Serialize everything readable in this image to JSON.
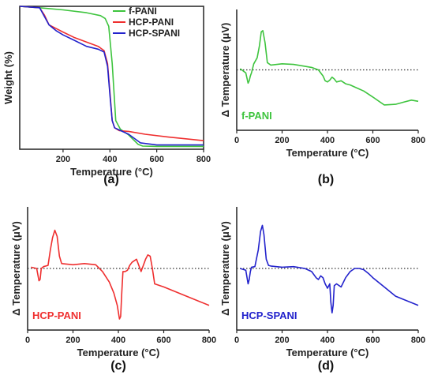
{
  "chart_data": [
    {
      "type": "line",
      "panel": "(a)",
      "xlabel": "Temperature (°C)",
      "ylabel": "Weight (%)",
      "xlim": [
        15,
        800
      ],
      "ylim": [
        0,
        100
      ],
      "xticks": [
        200,
        400,
        600,
        800
      ],
      "legend_position": "top-right",
      "series": [
        {
          "name": "f-PANI",
          "color": "#3ec43e",
          "x": [
            15,
            100,
            200,
            300,
            360,
            380,
            395,
            410,
            425,
            445,
            480,
            520,
            540,
            600,
            700,
            800
          ],
          "y": [
            100,
            99,
            97.5,
            95.5,
            93.5,
            91.5,
            86,
            60,
            20,
            14,
            10,
            3.5,
            2.2,
            2,
            2,
            2
          ]
        },
        {
          "name": "HCP-PANI",
          "color": "#ef2f2f",
          "x": [
            15,
            100,
            120,
            140,
            170,
            200,
            250,
            300,
            350,
            375,
            390,
            400,
            410,
            420,
            440,
            480,
            550,
            650,
            800
          ],
          "y": [
            100,
            99,
            94,
            87,
            84.5,
            82,
            78,
            75,
            72,
            69,
            60,
            40,
            20,
            15,
            13,
            12.5,
            10.5,
            8.5,
            6
          ]
        },
        {
          "name": "HCP-SPANI",
          "color": "#2222cc",
          "x": [
            15,
            100,
            120,
            140,
            170,
            200,
            250,
            300,
            350,
            375,
            390,
            400,
            410,
            420,
            440,
            480,
            530,
            600,
            800
          ],
          "y": [
            100,
            99,
            93,
            87,
            83,
            80,
            76,
            72,
            70,
            68,
            58,
            38,
            20,
            15,
            13.5,
            10.5,
            4.5,
            3,
            3
          ]
        }
      ]
    },
    {
      "type": "line",
      "panel": "(b)",
      "xlabel": "Temperature (°C)",
      "ylabel": "Δ Temperature (μV)",
      "inside_label": "f-PANI",
      "xlim": [
        0,
        800
      ],
      "ylim": [
        -100,
        100
      ],
      "baseline": 0,
      "xticks": [
        0,
        200,
        400,
        600,
        800
      ],
      "series": [
        {
          "name": "f-PANI",
          "color": "#3ec43e",
          "x": [
            15,
            40,
            50,
            55,
            60,
            65,
            75,
            90,
            100,
            108,
            115,
            125,
            135,
            150,
            200,
            250,
            300,
            330,
            360,
            380,
            390,
            400,
            410,
            420,
            430,
            440,
            460,
            480,
            500,
            530,
            560,
            600,
            650,
            700,
            740,
            770,
            800
          ],
          "y": [
            2,
            -5,
            -22,
            -18,
            -10,
            -5,
            10,
            20,
            40,
            63,
            65,
            45,
            12,
            8,
            10,
            9,
            6,
            4,
            0,
            -10,
            -18,
            -20,
            -17,
            -12,
            -15,
            -20,
            -18,
            -23,
            -25,
            -30,
            -35,
            -45,
            -58,
            -57,
            -53,
            -50,
            -52
          ]
        }
      ]
    },
    {
      "type": "line",
      "panel": "(c)",
      "xlabel": "Temperature (°C)",
      "ylabel": "Δ Temperature (μV)",
      "inside_label": "HCP-PANI",
      "xlim": [
        0,
        800
      ],
      "ylim": [
        -100,
        100
      ],
      "baseline": 0,
      "xticks": [
        0,
        200,
        400,
        600,
        800
      ],
      "series": [
        {
          "name": "HCP-PANI",
          "color": "#ef2f2f",
          "x": [
            15,
            40,
            50,
            55,
            60,
            70,
            90,
            100,
            110,
            120,
            130,
            140,
            150,
            200,
            250,
            300,
            330,
            360,
            380,
            395,
            405,
            410,
            415,
            420,
            430,
            440,
            450,
            460,
            480,
            500,
            520,
            530,
            540,
            550,
            560,
            600,
            700,
            800
          ],
          "y": [
            2,
            0,
            -20,
            -18,
            0,
            3,
            5,
            30,
            50,
            62,
            52,
            20,
            8,
            6,
            8,
            6,
            -5,
            -22,
            -40,
            -60,
            -82,
            -78,
            -40,
            -5,
            -5,
            -3,
            5,
            10,
            15,
            -5,
            15,
            22,
            20,
            0,
            -25,
            -30,
            -45,
            -60
          ]
        }
      ]
    },
    {
      "type": "line",
      "panel": "(d)",
      "xlabel": "Temperature (°C)",
      "ylabel": "Δ Temperature (μV)",
      "inside_label": "HCP-SPANI",
      "xlim": [
        0,
        800
      ],
      "ylim": [
        -100,
        100
      ],
      "baseline": 0,
      "xticks": [
        0,
        200,
        400,
        600,
        800
      ],
      "series": [
        {
          "name": "HCP-SPANI",
          "color": "#2222cc",
          "x": [
            15,
            40,
            50,
            55,
            60,
            65,
            80,
            95,
            105,
            113,
            120,
            130,
            140,
            150,
            200,
            250,
            300,
            330,
            350,
            360,
            370,
            380,
            390,
            400,
            410,
            415,
            420,
            425,
            430,
            440,
            460,
            480,
            500,
            520,
            540,
            560,
            580,
            600,
            650,
            700,
            800
          ],
          "y": [
            0,
            -3,
            -25,
            -18,
            -5,
            2,
            3,
            30,
            60,
            70,
            55,
            15,
            5,
            4,
            2,
            3,
            0,
            -5,
            -15,
            -18,
            -12,
            -15,
            -25,
            -32,
            -25,
            -55,
            -72,
            -60,
            -28,
            -25,
            -30,
            -15,
            -5,
            0,
            0,
            -2,
            -8,
            -15,
            -30,
            -45,
            -60
          ]
        }
      ]
    }
  ]
}
